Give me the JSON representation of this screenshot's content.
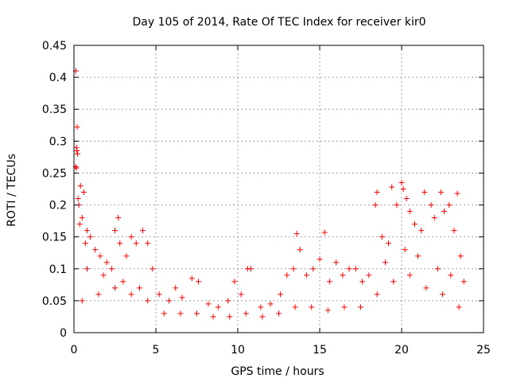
{
  "chart_data": {
    "type": "scatter",
    "title": "Day 105 of 2014, Rate Of TEC Index for receiver kir0",
    "xlabel": "GPS time / hours",
    "ylabel": "ROTI / TECUs",
    "xlim": [
      0,
      25
    ],
    "ylim": [
      0,
      0.45
    ],
    "xticks": [
      "0",
      "5",
      "10",
      "15",
      "20",
      "25"
    ],
    "yticks": [
      "0",
      "0.05",
      "0.1",
      "0.15",
      "0.2",
      "0.25",
      "0.3",
      "0.35",
      "0.4",
      "0.45"
    ],
    "grid": true,
    "marker": "plus",
    "color": "#ff0000",
    "series": [
      {
        "points": [
          [
            0.12,
            0.41
          ],
          [
            0.2,
            0.322
          ],
          [
            0.15,
            0.29
          ],
          [
            0.18,
            0.285
          ],
          [
            0.22,
            0.28
          ],
          [
            0.1,
            0.26
          ],
          [
            0.15,
            0.258
          ],
          [
            0.25,
            0.21
          ],
          [
            0.4,
            0.23
          ],
          [
            0.6,
            0.22
          ],
          [
            0.3,
            0.2
          ],
          [
            0.5,
            0.18
          ],
          [
            0.8,
            0.16
          ],
          [
            1.0,
            0.15
          ],
          [
            1.3,
            0.13
          ],
          [
            0.35,
            0.17
          ],
          [
            0.7,
            0.14
          ],
          [
            1.6,
            0.12
          ],
          [
            2.0,
            0.11
          ],
          [
            2.3,
            0.1
          ],
          [
            2.7,
            0.18
          ],
          [
            2.5,
            0.16
          ],
          [
            2.8,
            0.14
          ],
          [
            3.2,
            0.12
          ],
          [
            3.5,
            0.15
          ],
          [
            3.8,
            0.14
          ],
          [
            4.2,
            0.16
          ],
          [
            4.5,
            0.14
          ],
          [
            4.8,
            0.1
          ],
          [
            5.2,
            0.06
          ],
          [
            5.8,
            0.05
          ],
          [
            6.2,
            0.07
          ],
          [
            6.6,
            0.055
          ],
          [
            7.2,
            0.085
          ],
          [
            7.6,
            0.08
          ],
          [
            8.2,
            0.045
          ],
          [
            8.8,
            0.04
          ],
          [
            9.4,
            0.05
          ],
          [
            9.8,
            0.08
          ],
          [
            10.2,
            0.06
          ],
          [
            10.6,
            0.1
          ],
          [
            10.8,
            0.1
          ],
          [
            11.4,
            0.04
          ],
          [
            12.0,
            0.045
          ],
          [
            12.6,
            0.06
          ],
          [
            13.0,
            0.09
          ],
          [
            13.4,
            0.1
          ],
          [
            13.6,
            0.155
          ],
          [
            13.8,
            0.13
          ],
          [
            14.2,
            0.09
          ],
          [
            14.6,
            0.1
          ],
          [
            15.0,
            0.115
          ],
          [
            15.3,
            0.157
          ],
          [
            15.6,
            0.08
          ],
          [
            16.0,
            0.11
          ],
          [
            16.4,
            0.09
          ],
          [
            16.8,
            0.1
          ],
          [
            17.2,
            0.1
          ],
          [
            17.6,
            0.08
          ],
          [
            18.0,
            0.09
          ],
          [
            18.4,
            0.2
          ],
          [
            18.5,
            0.22
          ],
          [
            18.8,
            0.15
          ],
          [
            19.2,
            0.14
          ],
          [
            19.4,
            0.228
          ],
          [
            19.7,
            0.2
          ],
          [
            20.0,
            0.235
          ],
          [
            20.1,
            0.225
          ],
          [
            20.3,
            0.21
          ],
          [
            20.5,
            0.19
          ],
          [
            20.8,
            0.17
          ],
          [
            21.2,
            0.16
          ],
          [
            21.4,
            0.22
          ],
          [
            21.8,
            0.2
          ],
          [
            22.0,
            0.18
          ],
          [
            22.4,
            0.22
          ],
          [
            22.6,
            0.19
          ],
          [
            22.9,
            0.2
          ],
          [
            23.2,
            0.16
          ],
          [
            23.4,
            0.218
          ],
          [
            23.6,
            0.12
          ],
          [
            23.8,
            0.08
          ],
          [
            0.5,
            0.05
          ],
          [
            1.5,
            0.06
          ],
          [
            2.5,
            0.07
          ],
          [
            3.5,
            0.06
          ],
          [
            4.5,
            0.05
          ],
          [
            5.5,
            0.03
          ],
          [
            6.5,
            0.03
          ],
          [
            7.5,
            0.03
          ],
          [
            8.5,
            0.025
          ],
          [
            9.5,
            0.025
          ],
          [
            10.5,
            0.03
          ],
          [
            11.5,
            0.025
          ],
          [
            12.5,
            0.03
          ],
          [
            13.5,
            0.04
          ],
          [
            14.5,
            0.04
          ],
          [
            15.5,
            0.035
          ],
          [
            16.5,
            0.04
          ],
          [
            17.5,
            0.04
          ],
          [
            18.5,
            0.06
          ],
          [
            19.5,
            0.08
          ],
          [
            20.5,
            0.09
          ],
          [
            21.5,
            0.07
          ],
          [
            22.5,
            0.06
          ],
          [
            23.5,
            0.04
          ],
          [
            0.8,
            0.1
          ],
          [
            1.8,
            0.09
          ],
          [
            3.0,
            0.08
          ],
          [
            4.0,
            0.07
          ],
          [
            19.0,
            0.11
          ],
          [
            20.2,
            0.13
          ],
          [
            21.0,
            0.12
          ],
          [
            22.2,
            0.1
          ],
          [
            23.0,
            0.09
          ]
        ]
      }
    ]
  }
}
